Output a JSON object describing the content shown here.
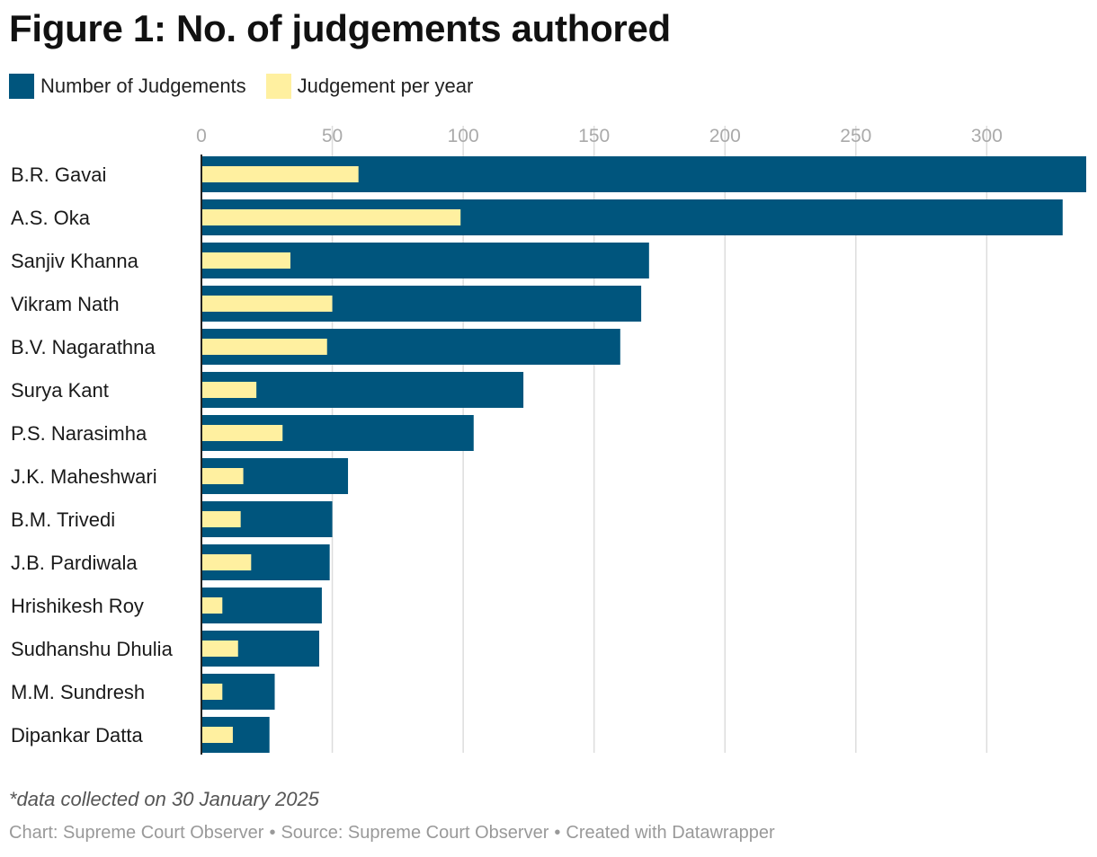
{
  "chart_data": {
    "type": "bar",
    "orientation": "horizontal",
    "title": "Figure 1: No. of judgements authored",
    "categories": [
      "B.R. Gavai",
      "A.S. Oka",
      "Sanjiv Khanna",
      "Vikram Nath",
      "B.V. Nagarathna",
      "Surya Kant",
      "P.S. Narasimha",
      "J.K. Maheshwari",
      "B.M. Trivedi",
      "J.B. Pardiwala",
      "Hrishikesh Roy",
      "Sudhanshu Dhulia",
      "M.M. Sundresh",
      "Dipankar Datta"
    ],
    "series": [
      {
        "name": "Number of Judgements",
        "color": "#00557d",
        "values": [
          338,
          329,
          171,
          168,
          160,
          123,
          104,
          56,
          50,
          49,
          46,
          45,
          28,
          26
        ]
      },
      {
        "name": "Judgement per year",
        "color": "#fff0a0",
        "values": [
          60,
          99,
          34,
          50,
          48,
          21,
          31,
          16,
          15,
          19,
          8,
          14,
          8,
          12
        ]
      }
    ],
    "xticks": [
      "0",
      "50",
      "100",
      "150",
      "200",
      "250",
      "300"
    ],
    "xlim": [
      0,
      338
    ],
    "grid": true,
    "legend_position": "top-left",
    "gridline_color": "#dddddd",
    "tick_color": "#aaaaaa"
  },
  "footnote": "*data collected on 30 January 2025",
  "credits": {
    "chart": "Chart: Supreme Court Observer",
    "source": "Source: Supreme Court Observer",
    "created": "Created with Datawrapper",
    "separator": "•"
  }
}
